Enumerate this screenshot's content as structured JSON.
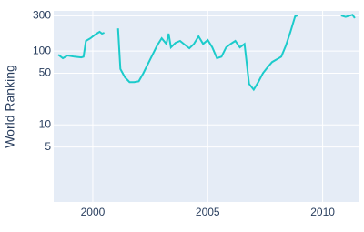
{
  "chart_data": {
    "type": "line",
    "y_label": "World Ranking",
    "log_y": true,
    "grid": true,
    "background": "#e5ecf6",
    "xlim": [
      1998.3,
      2011.6
    ],
    "xticks": [
      2000,
      2005,
      2010
    ],
    "ylim": [
      0.9,
      350
    ],
    "yticks": [
      5,
      10,
      50,
      100,
      300
    ],
    "x": [
      1998.5,
      1998.7,
      1998.9,
      1999.2,
      1999.5,
      1999.6,
      1999.7,
      1999.9,
      2000.1,
      2000.3,
      2000.4,
      2000.5,
      2000.8,
      2001.1,
      2001.2,
      2001.4,
      2001.6,
      2001.8,
      2002.0,
      2002.2,
      2002.4,
      2002.6,
      2002.8,
      2003.0,
      2003.2,
      2003.3,
      2003.4,
      2003.6,
      2003.8,
      2004.0,
      2004.2,
      2004.4,
      2004.6,
      2004.8,
      2005.0,
      2005.2,
      2005.4,
      2005.6,
      2005.8,
      2006.0,
      2006.2,
      2006.4,
      2006.6,
      2006.8,
      2007.0,
      2007.2,
      2007.4,
      2007.6,
      2007.8,
      2008.0,
      2008.2,
      2008.4,
      2008.6,
      2008.8,
      2008.9,
      2009.5,
      2010.8,
      2011.0,
      2011.3,
      2011.4
    ],
    "series": [
      {
        "name": "World Ranking",
        "color": "#1ccbcb",
        "values": [
          89,
          80,
          87,
          84,
          82,
          84,
          137,
          149,
          167,
          182,
          172,
          177,
          null,
          203,
          57,
          44,
          38,
          38,
          39,
          50,
          67,
          89,
          119,
          149,
          125,
          172,
          112,
          129,
          137,
          122,
          109,
          125,
          158,
          125,
          141,
          112,
          80,
          84,
          112,
          125,
          137,
          112,
          125,
          36,
          30,
          38,
          50,
          60,
          71,
          77,
          84,
          119,
          182,
          295,
          303,
          null,
          303,
          290,
          310,
          280
        ]
      }
    ]
  }
}
